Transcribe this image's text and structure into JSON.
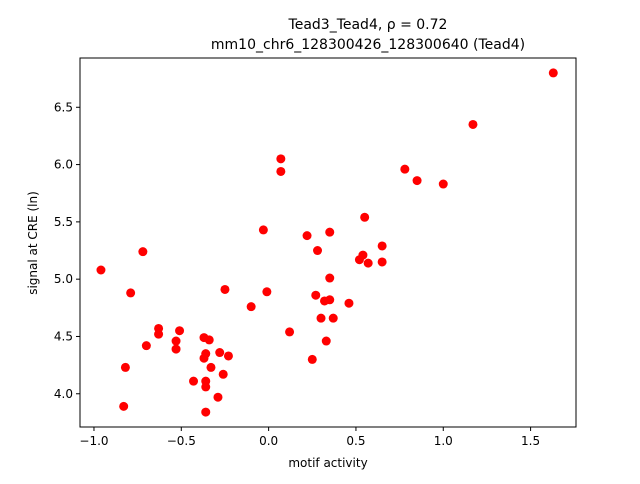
{
  "chart_data": {
    "type": "scatter",
    "title_line1": "Tead3_Tead4, ρ = 0.72",
    "title_line2": "mm10_chr6_128300426_128300640 (Tead4)",
    "xlabel": "motif activity",
    "ylabel": "signal at CRE (ln)",
    "xlim": [
      -1.08,
      1.76
    ],
    "ylim": [
      3.71,
      6.93
    ],
    "xticks": [
      {
        "value": -1.0,
        "label": "−1.0"
      },
      {
        "value": -0.5,
        "label": "−0.5"
      },
      {
        "value": 0.0,
        "label": "0.0"
      },
      {
        "value": 0.5,
        "label": "0.5"
      },
      {
        "value": 1.0,
        "label": "1.0"
      },
      {
        "value": 1.5,
        "label": "1.5"
      }
    ],
    "yticks": [
      {
        "value": 4.0,
        "label": "4.0"
      },
      {
        "value": 4.5,
        "label": "4.5"
      },
      {
        "value": 5.0,
        "label": "5.0"
      },
      {
        "value": 5.5,
        "label": "5.5"
      },
      {
        "value": 6.0,
        "label": "6.0"
      },
      {
        "value": 6.5,
        "label": "6.5"
      }
    ],
    "grid": false,
    "marker_color": "#ff0000",
    "points": [
      [
        -0.96,
        5.08
      ],
      [
        -0.82,
        4.23
      ],
      [
        -0.83,
        3.89
      ],
      [
        -0.79,
        4.88
      ],
      [
        -0.72,
        5.24
      ],
      [
        -0.7,
        4.42
      ],
      [
        -0.63,
        4.57
      ],
      [
        -0.63,
        4.52
      ],
      [
        -0.53,
        4.46
      ],
      [
        -0.53,
        4.39
      ],
      [
        -0.51,
        4.55
      ],
      [
        -0.43,
        4.11
      ],
      [
        -0.37,
        4.49
      ],
      [
        -0.37,
        4.31
      ],
      [
        -0.36,
        4.35
      ],
      [
        -0.36,
        4.11
      ],
      [
        -0.36,
        4.06
      ],
      [
        -0.36,
        3.84
      ],
      [
        -0.34,
        4.47
      ],
      [
        -0.33,
        4.23
      ],
      [
        -0.29,
        3.97
      ],
      [
        -0.28,
        4.36
      ],
      [
        -0.26,
        4.17
      ],
      [
        -0.25,
        4.91
      ],
      [
        -0.23,
        4.33
      ],
      [
        -0.1,
        4.76
      ],
      [
        -0.03,
        5.43
      ],
      [
        -0.01,
        4.89
      ],
      [
        0.07,
        6.05
      ],
      [
        0.07,
        5.94
      ],
      [
        0.12,
        4.54
      ],
      [
        0.22,
        5.38
      ],
      [
        0.25,
        4.3
      ],
      [
        0.27,
        4.86
      ],
      [
        0.28,
        5.25
      ],
      [
        0.3,
        4.66
      ],
      [
        0.32,
        4.81
      ],
      [
        0.33,
        4.46
      ],
      [
        0.35,
        4.82
      ],
      [
        0.35,
        5.41
      ],
      [
        0.35,
        5.01
      ],
      [
        0.37,
        4.66
      ],
      [
        0.46,
        4.79
      ],
      [
        0.52,
        5.17
      ],
      [
        0.54,
        5.21
      ],
      [
        0.55,
        5.54
      ],
      [
        0.57,
        5.14
      ],
      [
        0.65,
        5.29
      ],
      [
        0.65,
        5.15
      ],
      [
        0.78,
        5.96
      ],
      [
        0.85,
        5.86
      ],
      [
        1.0,
        5.83
      ],
      [
        1.17,
        6.35
      ],
      [
        1.63,
        6.8
      ]
    ]
  }
}
